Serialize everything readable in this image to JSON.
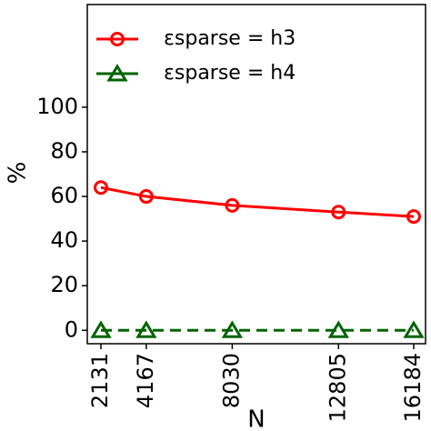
{
  "chart_data": {
    "type": "line",
    "x": [
      2131,
      4167,
      8030,
      12805,
      16184
    ],
    "series": [
      {
        "name": "εsparse = h3",
        "color": "#ff0000",
        "marker": "circle",
        "dashed": false,
        "values": [
          64,
          60,
          56,
          53,
          51
        ]
      },
      {
        "name": "εsparse = h4",
        "color": "#006400",
        "marker": "triangle",
        "dashed": true,
        "values": [
          0,
          0,
          0,
          0,
          0
        ]
      }
    ],
    "xlabel": "N",
    "ylabel": "%",
    "xlim": [
      1518,
      16715
    ],
    "ylim": [
      -6,
      146
    ],
    "xticks": [
      2131,
      4167,
      8030,
      12805,
      16184
    ],
    "yticks": [
      0,
      20,
      40,
      60,
      80,
      100
    ],
    "legend": "upper left"
  }
}
